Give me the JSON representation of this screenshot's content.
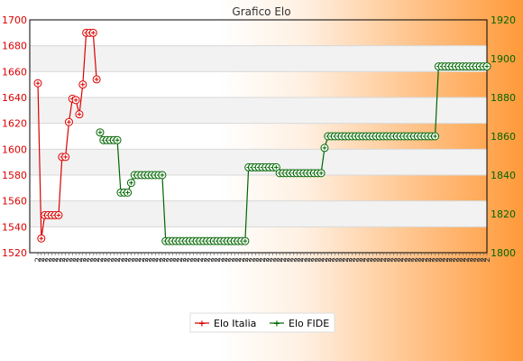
{
  "chart_data": {
    "type": "line",
    "title": "Grafico Elo",
    "legend_position": "bottom",
    "grid": true,
    "left_axis": {
      "ticks": [
        1520,
        1540,
        1560,
        1580,
        1600,
        1620,
        1640,
        1660,
        1680,
        1700
      ],
      "ylim": [
        1520,
        1700
      ]
    },
    "right_axis": {
      "ticks": [
        1800,
        1820,
        1840,
        1860,
        1880,
        1900,
        1920
      ],
      "ylim": [
        1800,
        1920
      ]
    },
    "x_count": 131,
    "x_label_prefix": "2",
    "colors": {
      "italia": "#dd0000",
      "fide": "#006600",
      "band": "#f2f2f2"
    },
    "series": [
      {
        "name": "Elo Italia",
        "axis": "left",
        "x": [
          0,
          1,
          2,
          3,
          4,
          5,
          6,
          7,
          8,
          9,
          10,
          11,
          12,
          13,
          14,
          15,
          16,
          17
        ],
        "values": [
          1651,
          1531,
          1549,
          1549,
          1549,
          1549,
          1549,
          1594,
          1594,
          1621,
          1639,
          1638,
          1627,
          1650,
          1690,
          1690,
          1690,
          1654
        ]
      },
      {
        "name": "Elo FIDE",
        "axis": "right",
        "segments": [
          {
            "from": 18,
            "to": 18,
            "value": 1862
          },
          {
            "from": 19,
            "to": 23,
            "value": 1858
          },
          {
            "from": 24,
            "to": 26,
            "value": 1831
          },
          {
            "from": 27,
            "to": 27,
            "value": 1836
          },
          {
            "from": 28,
            "to": 36,
            "value": 1840
          },
          {
            "from": 37,
            "to": 60,
            "value": 1806
          },
          {
            "from": 61,
            "to": 69,
            "value": 1844
          },
          {
            "from": 70,
            "to": 82,
            "value": 1841
          },
          {
            "from": 83,
            "to": 83,
            "value": 1854
          },
          {
            "from": 84,
            "to": 115,
            "value": 1860
          },
          {
            "from": 116,
            "to": 130,
            "value": 1896
          }
        ]
      }
    ]
  }
}
